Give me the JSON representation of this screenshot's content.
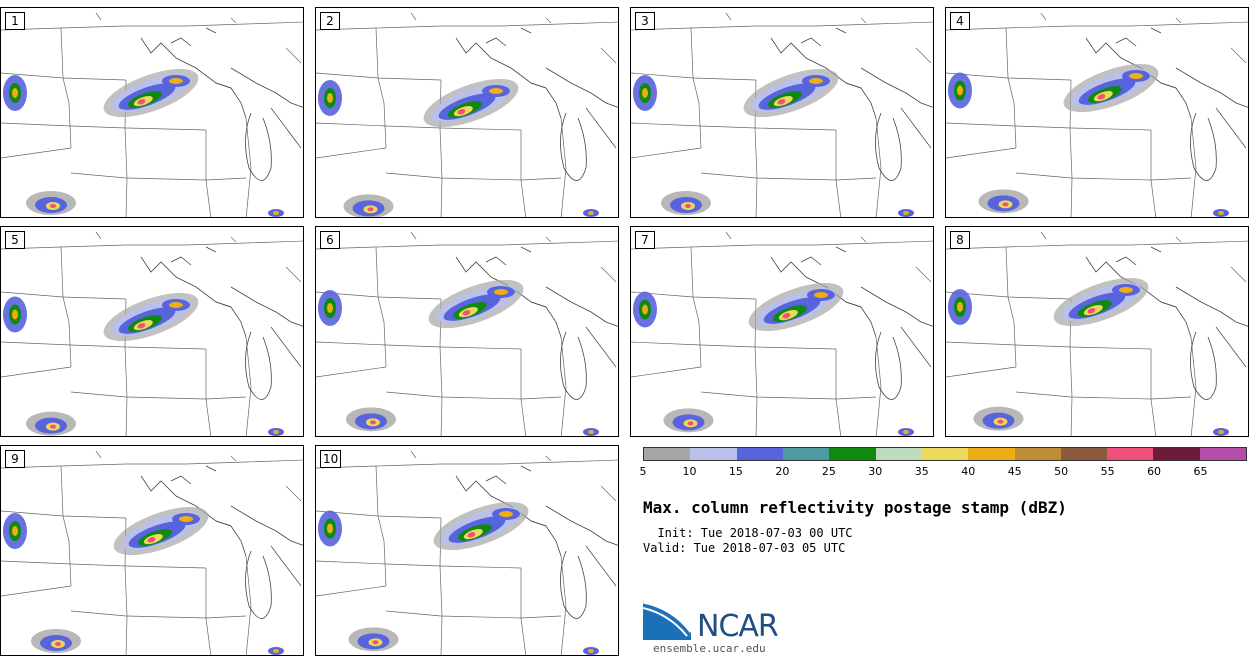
{
  "panels": [
    {
      "label": "1"
    },
    {
      "label": "2"
    },
    {
      "label": "3"
    },
    {
      "label": "4"
    },
    {
      "label": "5"
    },
    {
      "label": "6"
    },
    {
      "label": "7"
    },
    {
      "label": "8"
    },
    {
      "label": "9"
    },
    {
      "label": "10"
    }
  ],
  "colorbar": {
    "colors": [
      "#a6a6a6",
      "#b9c1ea",
      "#5863de",
      "#4d9aa1",
      "#0e8a0f",
      "#bedcbb",
      "#ecd85b",
      "#eead17",
      "#c18c36",
      "#8c5b3e",
      "#f15078",
      "#6d1b3b",
      "#b34da8"
    ],
    "ticks": [
      "5",
      "10",
      "15",
      "20",
      "25",
      "30",
      "35",
      "40",
      "45",
      "50",
      "55",
      "60",
      "65"
    ]
  },
  "title": "Max. column reflectivity postage stamp (dBZ)",
  "init": "  Init: Tue 2018-07-03 00 UTC",
  "valid": "Valid: Tue 2018-07-03 05 UTC",
  "logo": {
    "text": "NCAR",
    "site": "ensemble.ucar.edu"
  }
}
